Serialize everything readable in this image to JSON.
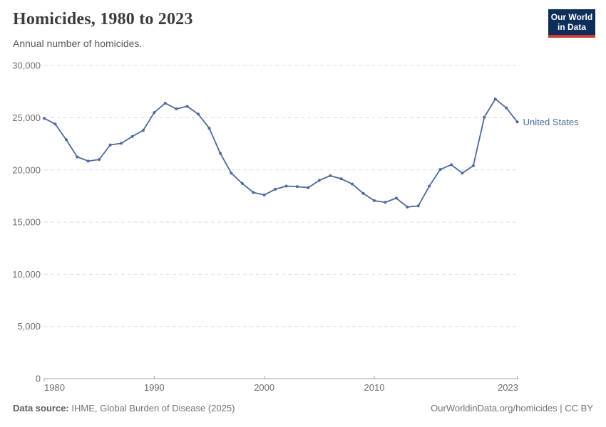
{
  "header": {
    "title": "Homicides, 1980 to 2023",
    "subtitle": "Annual number of homicides.",
    "logo": {
      "line1": "Our World",
      "line2": "in Data",
      "bg_color": "#0d2e5a",
      "bar_color": "#cc3b34",
      "text_color": "#ffffff"
    }
  },
  "chart_data": {
    "type": "line",
    "title": "Homicides, 1980 to 2023",
    "subtitle": "Annual number of homicides.",
    "x": [
      1980,
      1981,
      1982,
      1983,
      1984,
      1985,
      1986,
      1987,
      1988,
      1989,
      1990,
      1991,
      1992,
      1993,
      1994,
      1995,
      1996,
      1997,
      1998,
      1999,
      2000,
      2001,
      2002,
      2003,
      2004,
      2005,
      2006,
      2007,
      2008,
      2009,
      2010,
      2011,
      2012,
      2013,
      2014,
      2015,
      2016,
      2017,
      2018,
      2019,
      2020,
      2021,
      2022,
      2023
    ],
    "series": [
      {
        "name": "United States",
        "color": "#4c6a9c",
        "values": [
          24950,
          24400,
          22900,
          21250,
          20850,
          21000,
          22400,
          22550,
          23200,
          23800,
          25500,
          26400,
          25850,
          26100,
          25350,
          24000,
          21600,
          19700,
          18700,
          17850,
          17600,
          18150,
          18450,
          18400,
          18300,
          19000,
          19450,
          19150,
          18650,
          17750,
          17050,
          16900,
          17300,
          16450,
          16550,
          18450,
          20050,
          20500,
          19700,
          20400,
          25050,
          26800,
          25950,
          24600
        ]
      }
    ],
    "xlim": [
      1980,
      2023
    ],
    "ylim": [
      0,
      30000
    ],
    "x_ticks": [
      1980,
      1990,
      2000,
      2010,
      2023
    ],
    "y_ticks": [
      0,
      5000,
      10000,
      15000,
      20000,
      25000,
      30000
    ],
    "grid": "horizontal-dashed",
    "legend_position": "line-end-label",
    "entity_label": "United States",
    "colors": {
      "grid": "#dddddd",
      "axis": "#a1a1a1",
      "tick_label": "#6e6e6e"
    }
  },
  "footer": {
    "source_label": "Data source:",
    "source_text": " IHME, Global Burden of Disease (2025)",
    "credit_text": "OurWorldinData.org/homicides | CC BY"
  }
}
